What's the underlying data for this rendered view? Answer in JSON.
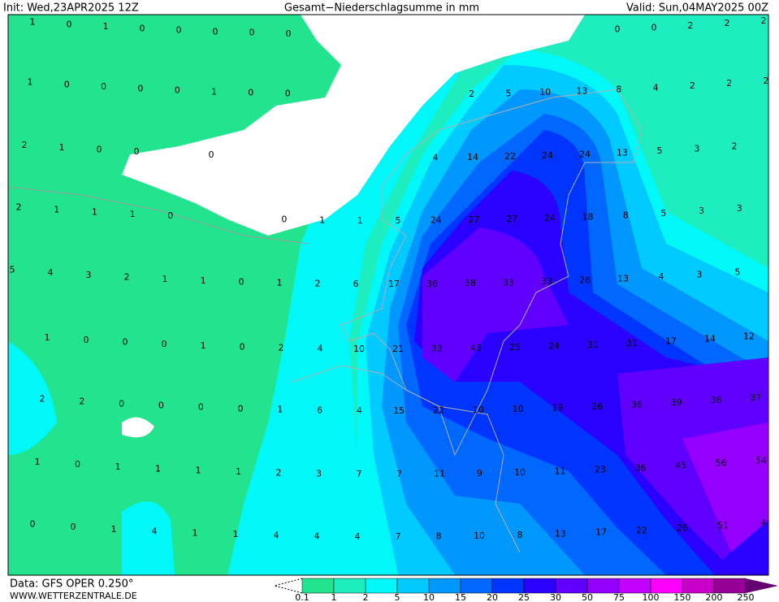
{
  "header": {
    "init": "Init: Wed,23APR2025 12Z",
    "title": "Gesamt−Niederschlagsumme in mm",
    "valid": "Valid: Sun,04MAY2025 00Z"
  },
  "footer": {
    "data": "Data: GFS OPER 0.250°",
    "site": "WWW.WETTERZENTRALE.DE"
  },
  "legend": {
    "labels": [
      "0.1",
      "1",
      "2",
      "5",
      "10",
      "15",
      "20",
      "25",
      "30",
      "50",
      "75",
      "100",
      "150",
      "200",
      "250"
    ],
    "colors": [
      "#22e48e",
      "#1eeebf",
      "#00f8f8",
      "#00caff",
      "#0098ff",
      "#0068ff",
      "#0034ff",
      "#2a00ff",
      "#6000ff",
      "#9400ff",
      "#c400ff",
      "#ff00ff",
      "#c800c8",
      "#960096",
      "#640070"
    ]
  },
  "values": [
    [
      1,
      0,
      1,
      0,
      0,
      0,
      0,
      0,
      null,
      null,
      null,
      null,
      null,
      null,
      null,
      null,
      0,
      0,
      2,
      2,
      2
    ],
    [
      1,
      0,
      0,
      0,
      0,
      1,
      0,
      0,
      null,
      null,
      null,
      null,
      2,
      5,
      10,
      13,
      8,
      4,
      2,
      2,
      2
    ],
    [
      2,
      1,
      0,
      0,
      null,
      0,
      null,
      null,
      null,
      null,
      null,
      4,
      14,
      22,
      24,
      24,
      13,
      5,
      3,
      2
    ],
    [
      2,
      1,
      1,
      1,
      0,
      null,
      null,
      0,
      1,
      1,
      5,
      24,
      27,
      27,
      24,
      18,
      8,
      5,
      3,
      3
    ],
    [
      5,
      4,
      3,
      2,
      1,
      1,
      0,
      1,
      2,
      6,
      17,
      36,
      38,
      33,
      33,
      26,
      13,
      4,
      3,
      5
    ],
    [
      1,
      0,
      0,
      0,
      1,
      0,
      2,
      4,
      10,
      21,
      33,
      43,
      25,
      24,
      31,
      31,
      17,
      14,
      12
    ],
    [
      2,
      2,
      0,
      0,
      0,
      0,
      1,
      6,
      4,
      15,
      22,
      10,
      10,
      19,
      26,
      36,
      39,
      36,
      37
    ],
    [
      1,
      0,
      1,
      1,
      1,
      1,
      2,
      3,
      7,
      7,
      11,
      9,
      10,
      11,
      23,
      36,
      45,
      56,
      54
    ],
    [
      0,
      0,
      1,
      4,
      1,
      1,
      4,
      4,
      4,
      7,
      8,
      10,
      8,
      13,
      17,
      22,
      26,
      51,
      4
    ]
  ]
}
